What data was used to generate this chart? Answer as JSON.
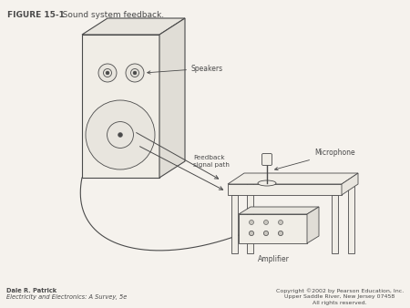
{
  "title_bold": "FIGURE 15-1",
  "title_normal": "   Sound system feedback.",
  "footer_left_line1": "Dale R. Patrick",
  "footer_left_line2": "Electricity and Electronics: A Survey, 5e",
  "footer_right_line1": "Copyright ©2002 by Pearson Education, Inc.",
  "footer_right_line2": "Upper Saddle River, New Jersey 07458",
  "footer_right_line3": "All rights reserved.",
  "label_speakers": "Speakers",
  "label_feedback": "Feedback\nsignal path",
  "label_microphone": "Microphone",
  "label_amplifier": "Amplifier",
  "bg_color": "#f5f2ed",
  "line_color": "#4a4a4a",
  "title_fontsize": 6.5,
  "label_fontsize": 5.5,
  "footer_fontsize": 4.8
}
